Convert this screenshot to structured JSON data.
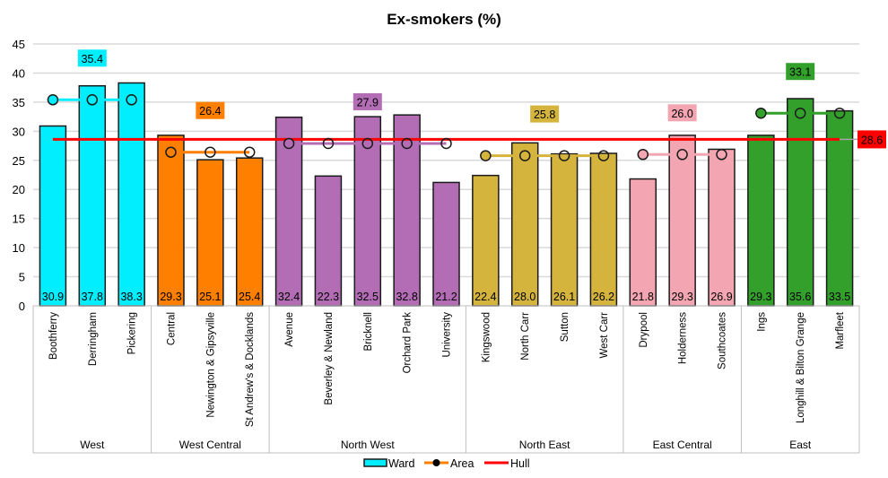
{
  "chart_data": {
    "type": "bar",
    "title": "Ex-smokers (%)",
    "ylim": [
      0,
      45
    ],
    "yticks": [
      0,
      5,
      10,
      15,
      20,
      25,
      30,
      35,
      40,
      45
    ],
    "grid": true,
    "legend_placement": "bottom",
    "legend": [
      {
        "name": "Ward",
        "kind": "bar"
      },
      {
        "name": "Area",
        "kind": "line-marker"
      },
      {
        "name": "Hull",
        "kind": "line"
      }
    ],
    "hull": {
      "name": "Hull",
      "value": 28.6,
      "color": "#ff0000"
    },
    "groups": [
      {
        "name": "West",
        "color": "#00eeff",
        "area_value": 35.4,
        "wards": [
          {
            "name": "Boothferry",
            "value": 30.9
          },
          {
            "name": "Derringham",
            "value": 37.8
          },
          {
            "name": "Pickering",
            "value": 38.3
          }
        ]
      },
      {
        "name": "West Central",
        "color": "#ff8000",
        "area_value": 26.4,
        "wards": [
          {
            "name": "Central",
            "value": 29.3
          },
          {
            "name": "Newington & Gipsyville",
            "value": 25.1
          },
          {
            "name": "St Andrew's & Docklands",
            "value": 25.4
          }
        ]
      },
      {
        "name": "North West",
        "color": "#b36db5",
        "area_value": 27.9,
        "wards": [
          {
            "name": "Avenue",
            "value": 32.4
          },
          {
            "name": "Beverley & Newland",
            "value": 22.3
          },
          {
            "name": "Bricknell",
            "value": 32.5
          },
          {
            "name": "Orchard Park",
            "value": 32.8
          },
          {
            "name": "University",
            "value": 21.2
          }
        ]
      },
      {
        "name": "North East",
        "color": "#d4b43c",
        "area_value": 25.8,
        "wards": [
          {
            "name": "Kingswood",
            "value": 22.4
          },
          {
            "name": "North Carr",
            "value": 28.0
          },
          {
            "name": "Sutton",
            "value": 26.1
          },
          {
            "name": "West Carr",
            "value": 26.2
          }
        ]
      },
      {
        "name": "East Central",
        "color": "#f3a6b2",
        "area_value": 26.0,
        "wards": [
          {
            "name": "Drypool",
            "value": 21.8
          },
          {
            "name": "Holderness",
            "value": 29.3
          },
          {
            "name": "Southcoates",
            "value": 26.9
          }
        ]
      },
      {
        "name": "East",
        "color": "#33a02c",
        "area_value": 33.1,
        "wards": [
          {
            "name": "Ings",
            "value": 29.3
          },
          {
            "name": "Longhill & Bilton Grange",
            "value": 35.6
          },
          {
            "name": "Marfleet",
            "value": 33.5
          }
        ]
      }
    ]
  }
}
